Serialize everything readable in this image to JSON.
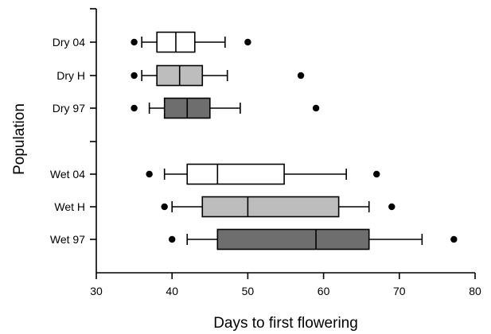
{
  "chart_data": {
    "type": "boxplot",
    "orientation": "horizontal",
    "xlabel": "Days to first flowering",
    "ylabel": "Population",
    "xlim": [
      30,
      80
    ],
    "xticks": [
      30,
      40,
      50,
      60,
      70,
      80
    ],
    "grid": false,
    "legend": "none",
    "series": [
      {
        "label": "Dry 04",
        "fill": "#ffffff",
        "whisker_low": 36,
        "q1": 38,
        "median": 40.5,
        "q3": 43,
        "whisker_high": 47,
        "outliers": [
          35,
          50
        ]
      },
      {
        "label": "Dry H",
        "fill": "#bdbdbd",
        "whisker_low": 36,
        "q1": 38,
        "median": 41,
        "q3": 44,
        "whisker_high": 47.3,
        "outliers": [
          35,
          57
        ]
      },
      {
        "label": "Dry 97",
        "fill": "#6e6e6e",
        "whisker_low": 37,
        "q1": 39,
        "median": 42,
        "q3": 45,
        "whisker_high": 49,
        "outliers": [
          35,
          59
        ]
      },
      {
        "label": "Wet 04",
        "fill": "#ffffff",
        "whisker_low": 39,
        "q1": 42,
        "median": 46,
        "q3": 54.8,
        "whisker_high": 63,
        "outliers": [
          37,
          67
        ]
      },
      {
        "label": "Wet H",
        "fill": "#bdbdbd",
        "whisker_low": 40,
        "q1": 44,
        "median": 50,
        "q3": 62,
        "whisker_high": 66,
        "outliers": [
          39,
          69
        ]
      },
      {
        "label": "Wet 97",
        "fill": "#6e6e6e",
        "whisker_low": 42,
        "q1": 46,
        "median": 59,
        "q3": 66,
        "whisker_high": 73,
        "outliers": [
          40,
          77.2
        ]
      }
    ],
    "colors": {
      "axis": "#000000",
      "outline": "#000000",
      "point": "#000000"
    }
  }
}
